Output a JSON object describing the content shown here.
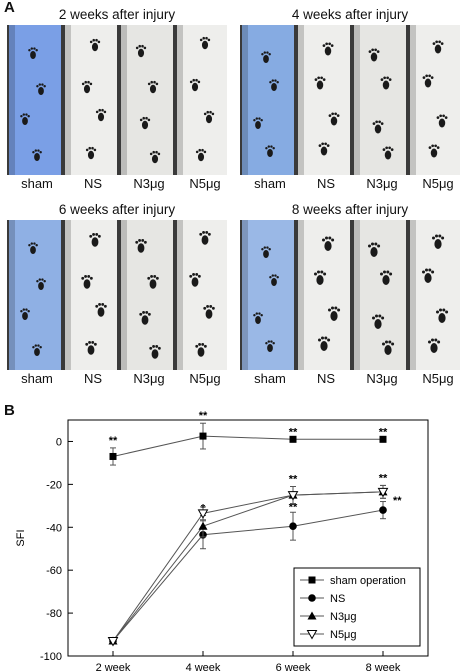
{
  "panel_a": {
    "letter": "A",
    "groups": [
      "sham",
      "NS",
      "N3μg",
      "N5μg"
    ],
    "panels": [
      {
        "title": "2 weeks after injury",
        "sham_color": "#7a9fe6"
      },
      {
        "title": "4 weeks after injury",
        "sham_color": "#86abe2"
      },
      {
        "title": "6 weeks after injury",
        "sham_color": "#8fb0e4"
      },
      {
        "title": "8 weeks after injury",
        "sham_color": "#9ab8e6"
      }
    ]
  },
  "panel_b": {
    "letter": "B"
  },
  "chart_data": {
    "type": "line",
    "categories": [
      "2 week",
      "4 week",
      "6 week",
      "8 week"
    ],
    "ylabel": "SFI",
    "xlabel": "",
    "ylim": [
      -100,
      10
    ],
    "yticks": [
      0,
      -20,
      -40,
      -60,
      -80,
      -100
    ],
    "grid": false,
    "legend_position": "bottom-right",
    "series": [
      {
        "name": "sham operation",
        "marker": "filled-square",
        "values": [
          -7,
          2.5,
          1,
          1
        ],
        "errors": [
          4,
          6,
          0,
          0
        ],
        "annotations": [
          "**",
          "**",
          "**",
          "**"
        ]
      },
      {
        "name": "NS",
        "marker": "filled-circle",
        "values": [
          -93,
          -43.5,
          -39.5,
          -32
        ],
        "errors": [
          0,
          6.5,
          6.5,
          4
        ],
        "annotations": [
          "",
          "",
          "**",
          "**"
        ]
      },
      {
        "name": "N3μg",
        "marker": "filled-triangle",
        "values": [
          -93,
          -39.5,
          -25,
          -23.5
        ],
        "errors": [
          0,
          5,
          4,
          3
        ],
        "annotations": [
          "",
          "*",
          "",
          ""
        ]
      },
      {
        "name": "N5μg",
        "marker": "open-triangle-down",
        "values": [
          -93,
          -33.5,
          -25,
          -23.5
        ],
        "errors": [
          0,
          3,
          4,
          3
        ],
        "annotations": [
          "",
          "",
          "**",
          "**"
        ]
      }
    ]
  }
}
